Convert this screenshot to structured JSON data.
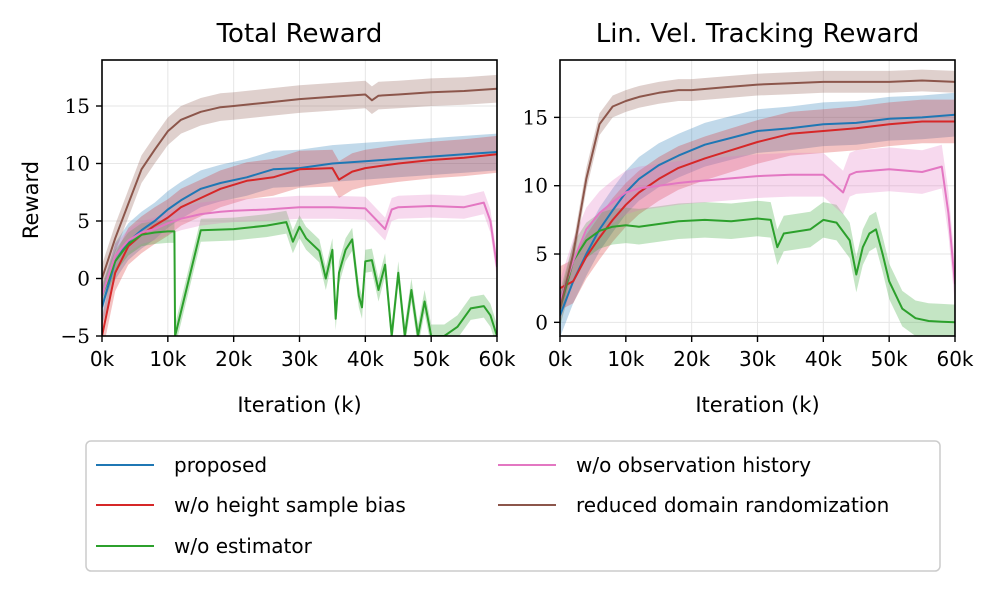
{
  "chart_data": [
    {
      "type": "line",
      "title": "Total Reward",
      "xlabel": "Iteration (k)",
      "ylabel": "Reward",
      "xlim": [
        0,
        60
      ],
      "ylim": [
        -5,
        19
      ],
      "xticks": [
        0,
        10,
        20,
        30,
        40,
        50,
        60
      ],
      "xtick_labels": [
        "0k",
        "10k",
        "20k",
        "30k",
        "40k",
        "50k",
        "60k"
      ],
      "yticks": [
        -5,
        0,
        5,
        10,
        15
      ],
      "ytick_labels": [
        "−5",
        "0",
        "5",
        "10",
        "15"
      ],
      "grid": true,
      "series": [
        {
          "name": "proposed",
          "color": "#1f77b4",
          "x": [
            0,
            2,
            4,
            6,
            8,
            10,
            12,
            15,
            18,
            22,
            26,
            30,
            35,
            40,
            45,
            50,
            55,
            60
          ],
          "y": [
            -2.5,
            1.5,
            3.2,
            4.2,
            5.0,
            6.0,
            6.8,
            7.8,
            8.3,
            8.8,
            9.5,
            9.6,
            10.0,
            10.2,
            10.4,
            10.6,
            10.8,
            11.0
          ],
          "band": 1.6
        },
        {
          "name": "w/o height sample bias",
          "color": "#d62728",
          "x": [
            0,
            2,
            4,
            6,
            8,
            10,
            12,
            15,
            18,
            22,
            26,
            30,
            35,
            36,
            38,
            40,
            45,
            50,
            55,
            60
          ],
          "y": [
            -5.0,
            0.5,
            2.8,
            3.8,
            4.6,
            5.3,
            6.2,
            7.0,
            7.8,
            8.5,
            8.8,
            9.5,
            9.6,
            8.6,
            9.3,
            9.6,
            10.0,
            10.3,
            10.5,
            10.8
          ],
          "band": 1.6
        },
        {
          "name": "w/o estimator",
          "color": "#2ca02c",
          "x": [
            0,
            2,
            4,
            6,
            8,
            10,
            11,
            11.1,
            15,
            20,
            25,
            28,
            29,
            30,
            31,
            33,
            34,
            35,
            35.5,
            36,
            37,
            38,
            39,
            39.5,
            40,
            41,
            42,
            43,
            44,
            45,
            46,
            47,
            48,
            49,
            50,
            52,
            54,
            56,
            58,
            59,
            60
          ],
          "y": [
            -1.5,
            1.5,
            3.0,
            3.8,
            4.0,
            4.1,
            4.1,
            -5.0,
            4.2,
            4.3,
            4.6,
            4.9,
            3.2,
            4.5,
            3.5,
            2.4,
            0.0,
            2.5,
            -3.5,
            0.5,
            2.5,
            3.4,
            -1.5,
            -2.5,
            1.5,
            1.6,
            -1.0,
            1.2,
            -5.0,
            0.5,
            -5.0,
            -1.0,
            -5.0,
            -2.0,
            -5.0,
            -5.0,
            -4.2,
            -2.6,
            -2.4,
            -3.2,
            -5.0
          ],
          "band": 1.0
        },
        {
          "name": "w/o observation history",
          "color": "#e377c2",
          "x": [
            0,
            2,
            4,
            6,
            8,
            10,
            12,
            15,
            18,
            20,
            25,
            30,
            35,
            40,
            43,
            44,
            45,
            50,
            55,
            58,
            59,
            60
          ],
          "y": [
            -1.5,
            2.0,
            3.3,
            4.0,
            4.3,
            4.8,
            5.2,
            5.6,
            5.8,
            5.9,
            6.0,
            6.2,
            6.2,
            6.1,
            4.3,
            6.0,
            6.2,
            6.3,
            6.2,
            6.6,
            5.0,
            1.0
          ],
          "band": 1.0
        },
        {
          "name": "reduced domain randomization",
          "color": "#8c564b",
          "x": [
            0,
            2,
            4,
            6,
            8,
            10,
            12,
            15,
            18,
            20,
            25,
            30,
            35,
            40,
            41,
            42,
            45,
            50,
            55,
            60
          ],
          "y": [
            0.0,
            3.5,
            6.5,
            9.5,
            11.2,
            12.8,
            13.8,
            14.5,
            14.9,
            15.0,
            15.3,
            15.6,
            15.8,
            16.0,
            15.5,
            15.9,
            16.0,
            16.2,
            16.3,
            16.5
          ],
          "band": 1.2
        }
      ]
    },
    {
      "type": "line",
      "title": "Lin. Vel. Tracking Reward",
      "xlabel": "Iteration (k)",
      "ylabel": "",
      "xlim": [
        0,
        60
      ],
      "ylim": [
        -1,
        19.2
      ],
      "xticks": [
        0,
        10,
        20,
        30,
        40,
        50,
        60
      ],
      "xtick_labels": [
        "0k",
        "10k",
        "20k",
        "30k",
        "40k",
        "50k",
        "60k"
      ],
      "yticks": [
        0,
        5,
        10,
        15
      ],
      "ytick_labels": [
        "0",
        "5",
        "10",
        "15"
      ],
      "grid": true,
      "series": [
        {
          "name": "proposed",
          "color": "#1f77b4",
          "x": [
            0,
            2,
            4,
            6,
            8,
            10,
            12,
            15,
            18,
            22,
            26,
            30,
            35,
            40,
            45,
            50,
            55,
            60
          ],
          "y": [
            0.5,
            3.0,
            5.0,
            6.8,
            8.2,
            9.5,
            10.5,
            11.5,
            12.2,
            13.0,
            13.5,
            14.0,
            14.2,
            14.5,
            14.6,
            14.9,
            15.0,
            15.2
          ],
          "band": 1.6
        },
        {
          "name": "w/o height sample bias",
          "color": "#d62728",
          "x": [
            0,
            2,
            4,
            6,
            8,
            10,
            12,
            15,
            18,
            22,
            26,
            30,
            35,
            40,
            45,
            50,
            55,
            60
          ],
          "y": [
            2.5,
            3.0,
            4.8,
            6.2,
            7.5,
            8.6,
            9.5,
            10.5,
            11.3,
            12.0,
            12.6,
            13.2,
            13.8,
            14.0,
            14.2,
            14.5,
            14.7,
            14.7
          ],
          "band": 1.6
        },
        {
          "name": "w/o estimator",
          "color": "#2ca02c",
          "x": [
            0,
            2,
            4,
            6,
            8,
            10,
            12,
            15,
            18,
            22,
            26,
            30,
            32,
            33,
            34,
            38,
            40,
            42,
            44,
            45,
            46,
            47,
            48,
            49,
            50,
            52,
            54,
            56,
            58,
            60
          ],
          "y": [
            1.0,
            4.5,
            6.0,
            6.7,
            7.0,
            7.1,
            7.0,
            7.2,
            7.4,
            7.5,
            7.4,
            7.6,
            7.5,
            5.5,
            6.5,
            6.8,
            7.5,
            7.3,
            6.0,
            3.5,
            5.5,
            6.5,
            6.8,
            5.0,
            3.0,
            1.0,
            0.3,
            0.1,
            0.05,
            0.0
          ],
          "band": 1.3
        },
        {
          "name": "w/o observation history",
          "color": "#e377c2",
          "x": [
            0,
            2,
            4,
            6,
            8,
            10,
            12,
            15,
            18,
            20,
            25,
            30,
            35,
            40,
            43,
            44,
            45,
            50,
            55,
            58,
            59,
            60
          ],
          "y": [
            1.5,
            4.5,
            6.8,
            8.0,
            8.8,
            9.5,
            9.8,
            10.0,
            10.2,
            10.3,
            10.5,
            10.7,
            10.8,
            10.8,
            9.5,
            10.8,
            11.0,
            11.2,
            11.0,
            11.4,
            8.0,
            2.8
          ],
          "band": 1.6
        },
        {
          "name": "reduced domain randomization",
          "color": "#8c564b",
          "x": [
            0,
            2,
            4,
            6,
            8,
            10,
            12,
            15,
            18,
            20,
            25,
            30,
            35,
            40,
            45,
            50,
            55,
            60
          ],
          "y": [
            1.0,
            5.0,
            10.5,
            14.5,
            15.8,
            16.2,
            16.5,
            16.8,
            17.0,
            17.0,
            17.2,
            17.4,
            17.5,
            17.6,
            17.6,
            17.6,
            17.7,
            17.6
          ],
          "band": 0.8
        }
      ]
    }
  ],
  "legend": {
    "items": [
      {
        "label": "proposed",
        "color": "#1f77b4"
      },
      {
        "label": "w/o height sample bias",
        "color": "#d62728"
      },
      {
        "label": "w/o estimator",
        "color": "#2ca02c"
      },
      {
        "label": "w/o observation history",
        "color": "#e377c2"
      },
      {
        "label": "reduced domain randomization",
        "color": "#8c564b"
      }
    ]
  }
}
